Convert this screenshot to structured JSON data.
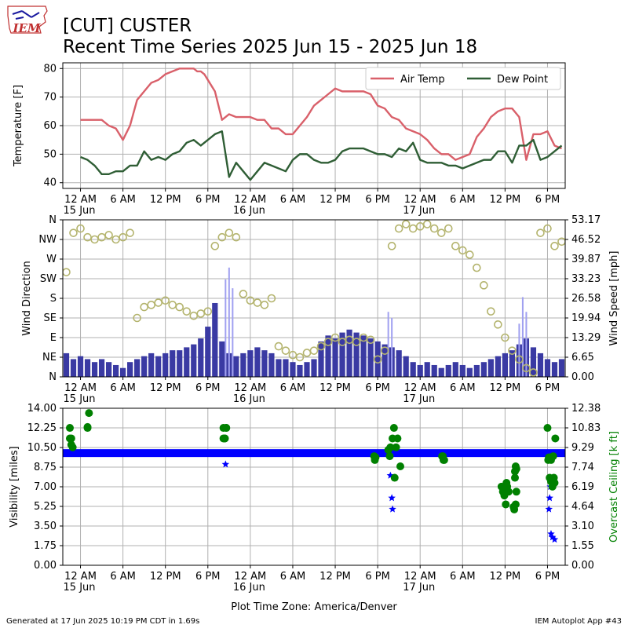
{
  "header": {
    "title_line1": "[CUT] CUSTER",
    "title_line2": "Recent Time Series 2025 Jun 15 - 2025 Jun 18",
    "logo_text": "IEM"
  },
  "footer": {
    "generated": "Generated at 17 Jun 2025 10:19 PM CDT in 1.69s",
    "app": "IEM Autoplot App #43"
  },
  "x_axis": {
    "ticks": [
      "12 AM",
      "6 AM",
      "12 PM",
      "6 PM",
      "12 AM",
      "6 AM",
      "12 PM",
      "6 PM",
      "12 AM",
      "6 AM",
      "12 PM",
      "6 PM"
    ],
    "date_labels": [
      {
        "tick_index": 0,
        "label": "15 Jun"
      },
      {
        "tick_index": 4,
        "label": "16 Jun"
      },
      {
        "tick_index": 8,
        "label": "17 Jun"
      }
    ],
    "xlabel": "Plot Time Zone: America/Denver",
    "range_hours": [
      -2.5,
      68.5
    ]
  },
  "colors": {
    "air_temp": "#d9606a",
    "dew_point": "#2f5e35",
    "wind_speed": "#3a3aa3",
    "wind_gust": "#a0a0f0",
    "wind_dir": "#b4b46e",
    "visibility": "#0000ff",
    "ceiling": "#008000",
    "grid": "#b0b0b0"
  },
  "chart_data": [
    {
      "type": "line",
      "ylabel": "Temperature [F]",
      "ylim": [
        38,
        82
      ],
      "yticks": [
        "40",
        "50",
        "60",
        "70",
        "80"
      ],
      "grid": true,
      "legend_location": "upper-right",
      "x_unit": "hours since 15 Jun 12 AM",
      "series": [
        {
          "name": "Air Temp",
          "x": [
            0,
            1,
            2,
            3,
            4,
            5,
            6,
            7,
            8,
            9,
            10,
            11,
            12,
            13,
            14,
            15,
            16,
            16.5,
            17,
            17.5,
            18,
            19,
            20,
            21,
            22,
            23,
            24,
            25,
            26,
            27,
            28,
            29,
            30,
            31,
            32,
            33,
            34,
            35,
            36,
            37,
            38,
            39,
            40,
            41,
            42,
            43,
            44,
            45,
            46,
            47,
            48,
            49,
            50,
            51,
            52,
            53,
            54,
            55,
            56,
            57,
            58,
            59,
            60,
            61,
            62,
            63,
            64,
            65,
            66,
            67,
            68
          ],
          "y": [
            62,
            62,
            62,
            62,
            60,
            59,
            55,
            60,
            69,
            72,
            75,
            76,
            78,
            79,
            80,
            80,
            80,
            79,
            79,
            78,
            76,
            72,
            62,
            64,
            63,
            63,
            63,
            62,
            62,
            59,
            59,
            57,
            57,
            60,
            63,
            67,
            69,
            71,
            73,
            72,
            72,
            72,
            72,
            71,
            67,
            66,
            63,
            62,
            59,
            58,
            57,
            55,
            52,
            50,
            50,
            48,
            49,
            50,
            56,
            59,
            63,
            65,
            66,
            66,
            63,
            48,
            57,
            57,
            58,
            53,
            52
          ],
          "color": "#d9606a"
        },
        {
          "name": "Dew Point",
          "x": [
            0,
            1,
            2,
            3,
            4,
            5,
            6,
            7,
            8,
            9,
            10,
            11,
            12,
            13,
            14,
            15,
            16,
            17,
            18,
            19,
            20,
            21,
            22,
            23,
            24,
            25,
            26,
            27,
            28,
            29,
            30,
            31,
            32,
            33,
            34,
            35,
            36,
            37,
            38,
            39,
            40,
            41,
            42,
            43,
            44,
            45,
            46,
            47,
            48,
            49,
            50,
            51,
            52,
            53,
            54,
            55,
            56,
            57,
            58,
            59,
            60,
            61,
            62,
            63,
            64,
            65,
            66,
            67,
            68
          ],
          "y": [
            49,
            48,
            46,
            43,
            43,
            44,
            44,
            46,
            46,
            51,
            48,
            49,
            48,
            50,
            51,
            54,
            55,
            53,
            55,
            57,
            58,
            42,
            47,
            44,
            41,
            44,
            47,
            46,
            45,
            44,
            48,
            50,
            50,
            48,
            47,
            47,
            48,
            51,
            52,
            52,
            52,
            51,
            50,
            50,
            49,
            52,
            51,
            54,
            48,
            47,
            47,
            47,
            46,
            46,
            45,
            46,
            47,
            48,
            48,
            51,
            51,
            47,
            53,
            53,
            55,
            48,
            49,
            51,
            53
          ],
          "color": "#2f5e35"
        }
      ]
    },
    {
      "type": "bar+scatter",
      "ylabel": "Wind Direction",
      "y2label": "Wind Speed [mph]",
      "ylim": [
        0,
        360
      ],
      "yticks": [
        "N",
        "NE",
        "E",
        "SE",
        "S",
        "SW",
        "W",
        "NW",
        "N"
      ],
      "y2lim": [
        0,
        53.17
      ],
      "y2ticks": [
        "0.00",
        "6.65",
        "13.29",
        "19.94",
        "26.58",
        "33.23",
        "39.87",
        "46.52",
        "53.17"
      ],
      "grid": true,
      "x_unit": "hours since 15 Jun 12 AM",
      "wind_speed_mph": {
        "x": [
          -2,
          -1,
          0,
          1,
          2,
          3,
          4,
          5,
          6,
          7,
          8,
          9,
          10,
          11,
          12,
          13,
          14,
          15,
          16,
          17,
          18,
          19,
          20,
          21,
          22,
          23,
          24,
          25,
          26,
          27,
          28,
          29,
          30,
          31,
          32,
          33,
          34,
          35,
          36,
          37,
          38,
          39,
          40,
          41,
          42,
          43,
          44,
          45,
          46,
          47,
          48,
          49,
          50,
          51,
          52,
          53,
          54,
          55,
          56,
          57,
          58,
          59,
          60,
          61,
          62,
          63,
          64,
          65,
          66,
          67,
          68
        ],
        "y": [
          8,
          6,
          7,
          6,
          5,
          6,
          5,
          4,
          3,
          5,
          6,
          7,
          8,
          7,
          8,
          9,
          9,
          10,
          11,
          13,
          17,
          25,
          12,
          8,
          7,
          8,
          9,
          10,
          9,
          8,
          6,
          6,
          5,
          4,
          5,
          6,
          12,
          14,
          13,
          15,
          16,
          15,
          14,
          13,
          12,
          11,
          10,
          9,
          7,
          5,
          4,
          5,
          4,
          3,
          4,
          5,
          4,
          3,
          4,
          5,
          6,
          7,
          8,
          9,
          11,
          13,
          10,
          8,
          6,
          5,
          6
        ]
      },
      "wind_gust_mph": {
        "x": [
          20.5,
          21,
          21.5,
          43.5,
          44,
          62,
          62.5,
          63
        ],
        "y": [
          33,
          37,
          30,
          22,
          20,
          18,
          27,
          22
        ]
      },
      "wind_direction_deg": {
        "x": [
          -2,
          -1,
          0,
          1,
          2,
          3,
          4,
          5,
          6,
          7,
          8,
          9,
          10,
          11,
          12,
          13,
          14,
          15,
          16,
          17,
          18,
          19,
          20,
          21,
          22,
          23,
          24,
          25,
          26,
          27,
          28,
          29,
          30,
          31,
          32,
          33,
          34,
          35,
          36,
          37,
          38,
          39,
          40,
          41,
          42,
          43,
          44,
          45,
          46,
          47,
          48,
          49,
          50,
          51,
          52,
          53,
          54,
          55,
          56,
          57,
          58,
          59,
          60,
          61,
          62,
          63,
          64,
          65,
          66,
          67,
          68
        ],
        "y": [
          240,
          330,
          340,
          320,
          315,
          320,
          325,
          315,
          320,
          330,
          135,
          160,
          165,
          170,
          175,
          165,
          160,
          150,
          140,
          145,
          150,
          300,
          320,
          330,
          320,
          190,
          175,
          170,
          165,
          180,
          70,
          60,
          50,
          45,
          55,
          60,
          70,
          80,
          90,
          80,
          85,
          80,
          90,
          85,
          40,
          60,
          300,
          340,
          350,
          340,
          345,
          350,
          340,
          330,
          340,
          300,
          290,
          280,
          250,
          210,
          150,
          120,
          90,
          60,
          40,
          20,
          10,
          330,
          340,
          300,
          310
        ]
      }
    },
    {
      "type": "scatter",
      "ylabel": "Visibility [miles]",
      "y2label": "Overcast Ceiling [k ft]",
      "ylim": [
        0,
        14
      ],
      "yticks": [
        "0.00",
        "1.75",
        "3.50",
        "5.25",
        "7.00",
        "8.75",
        "10.50",
        "12.25",
        "14.00"
      ],
      "y2lim": [
        0,
        12.38
      ],
      "y2ticks": [
        "0.00",
        "1.55",
        "3.10",
        "4.64",
        "6.19",
        "7.74",
        "9.29",
        "10.83",
        "12.38"
      ],
      "grid": true,
      "x_unit": "hours since 15 Jun 12 AM",
      "visibility_miles": {
        "x_start": -2.5,
        "x_end": 68.5,
        "baseline": 10,
        "dips_x": [
          20.5,
          43.8,
          44,
          44.1,
          66.2,
          66.3,
          66.4,
          66.5,
          66.7,
          67
        ],
        "dips_y": [
          9.0,
          8.0,
          6.0,
          5.0,
          5.0,
          6.0,
          7.0,
          2.8,
          2.5,
          2.3
        ]
      },
      "ceiling_kft": {
        "x": [
          -1.5,
          -1.3,
          -1.1,
          -1.3,
          -1.5,
          1,
          1.2,
          1,
          20.2,
          20.4,
          20.6,
          20.4,
          20.2,
          20.6,
          41.5,
          41.7,
          41.6,
          43.5,
          43.8,
          44.1,
          44.3,
          44.6,
          44.8,
          44.4,
          43.7,
          45.2,
          51.1,
          51.3,
          51.2,
          51.4,
          59.5,
          59.7,
          59.9,
          60.1,
          60.3,
          60.5,
          60.2,
          61.2,
          61.3,
          61.5,
          61.6,
          61.4,
          61.5,
          61.4,
          61.6,
          66.0,
          66.2,
          66.1,
          66.3,
          66.5,
          66.7,
          66.9,
          67.1,
          66.5,
          66.8,
          67.0,
          66.2
        ],
        "y": [
          10.83,
          10.0,
          9.3,
          9.5,
          10.0,
          10.83,
          12.0,
          10.9,
          10.83,
          10.0,
          10.83,
          10.0,
          10.0,
          10.83,
          8.6,
          8.5,
          8.3,
          9.1,
          9.3,
          10.0,
          10.83,
          9.3,
          10.0,
          6.9,
          8.6,
          7.8,
          8.6,
          8.3,
          8.6,
          8.3,
          6.2,
          5.8,
          5.5,
          4.8,
          6.2,
          5.8,
          6.5,
          4.6,
          4.4,
          4.8,
          5.8,
          7.4,
          7.8,
          6.9,
          7.6,
          10.83,
          8.5,
          8.3,
          6.9,
          6.6,
          6.2,
          6.9,
          10.0,
          8.3,
          8.6,
          6.5,
          8.5
        ]
      }
    }
  ]
}
